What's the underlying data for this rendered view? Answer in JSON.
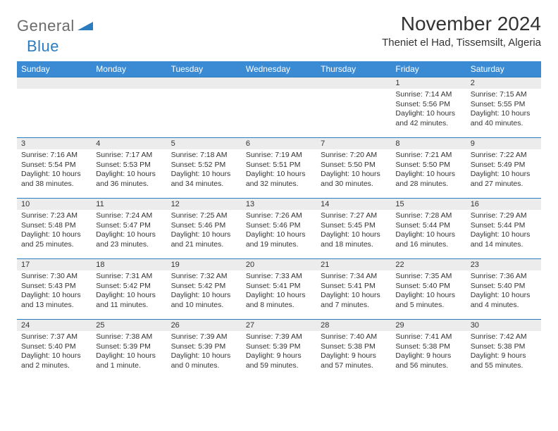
{
  "brand": {
    "part1": "General",
    "part2": "Blue"
  },
  "title": "November 2024",
  "location": "Theniet el Had, Tissemsilt, Algeria",
  "colors": {
    "header_bg": "#3b8bd4",
    "header_text": "#ffffff",
    "border": "#2b7bbf",
    "daynum_bg": "#ececec",
    "logo_gray": "#6b6b6b",
    "logo_blue": "#2b7bbf"
  },
  "day_headers": [
    "Sunday",
    "Monday",
    "Tuesday",
    "Wednesday",
    "Thursday",
    "Friday",
    "Saturday"
  ],
  "weeks": [
    [
      null,
      null,
      null,
      null,
      null,
      {
        "n": "1",
        "sr": "7:14 AM",
        "ss": "5:56 PM",
        "dl": "10 hours and 42 minutes."
      },
      {
        "n": "2",
        "sr": "7:15 AM",
        "ss": "5:55 PM",
        "dl": "10 hours and 40 minutes."
      }
    ],
    [
      {
        "n": "3",
        "sr": "7:16 AM",
        "ss": "5:54 PM",
        "dl": "10 hours and 38 minutes."
      },
      {
        "n": "4",
        "sr": "7:17 AM",
        "ss": "5:53 PM",
        "dl": "10 hours and 36 minutes."
      },
      {
        "n": "5",
        "sr": "7:18 AM",
        "ss": "5:52 PM",
        "dl": "10 hours and 34 minutes."
      },
      {
        "n": "6",
        "sr": "7:19 AM",
        "ss": "5:51 PM",
        "dl": "10 hours and 32 minutes."
      },
      {
        "n": "7",
        "sr": "7:20 AM",
        "ss": "5:50 PM",
        "dl": "10 hours and 30 minutes."
      },
      {
        "n": "8",
        "sr": "7:21 AM",
        "ss": "5:50 PM",
        "dl": "10 hours and 28 minutes."
      },
      {
        "n": "9",
        "sr": "7:22 AM",
        "ss": "5:49 PM",
        "dl": "10 hours and 27 minutes."
      }
    ],
    [
      {
        "n": "10",
        "sr": "7:23 AM",
        "ss": "5:48 PM",
        "dl": "10 hours and 25 minutes."
      },
      {
        "n": "11",
        "sr": "7:24 AM",
        "ss": "5:47 PM",
        "dl": "10 hours and 23 minutes."
      },
      {
        "n": "12",
        "sr": "7:25 AM",
        "ss": "5:46 PM",
        "dl": "10 hours and 21 minutes."
      },
      {
        "n": "13",
        "sr": "7:26 AM",
        "ss": "5:46 PM",
        "dl": "10 hours and 19 minutes."
      },
      {
        "n": "14",
        "sr": "7:27 AM",
        "ss": "5:45 PM",
        "dl": "10 hours and 18 minutes."
      },
      {
        "n": "15",
        "sr": "7:28 AM",
        "ss": "5:44 PM",
        "dl": "10 hours and 16 minutes."
      },
      {
        "n": "16",
        "sr": "7:29 AM",
        "ss": "5:44 PM",
        "dl": "10 hours and 14 minutes."
      }
    ],
    [
      {
        "n": "17",
        "sr": "7:30 AM",
        "ss": "5:43 PM",
        "dl": "10 hours and 13 minutes."
      },
      {
        "n": "18",
        "sr": "7:31 AM",
        "ss": "5:42 PM",
        "dl": "10 hours and 11 minutes."
      },
      {
        "n": "19",
        "sr": "7:32 AM",
        "ss": "5:42 PM",
        "dl": "10 hours and 10 minutes."
      },
      {
        "n": "20",
        "sr": "7:33 AM",
        "ss": "5:41 PM",
        "dl": "10 hours and 8 minutes."
      },
      {
        "n": "21",
        "sr": "7:34 AM",
        "ss": "5:41 PM",
        "dl": "10 hours and 7 minutes."
      },
      {
        "n": "22",
        "sr": "7:35 AM",
        "ss": "5:40 PM",
        "dl": "10 hours and 5 minutes."
      },
      {
        "n": "23",
        "sr": "7:36 AM",
        "ss": "5:40 PM",
        "dl": "10 hours and 4 minutes."
      }
    ],
    [
      {
        "n": "24",
        "sr": "7:37 AM",
        "ss": "5:40 PM",
        "dl": "10 hours and 2 minutes."
      },
      {
        "n": "25",
        "sr": "7:38 AM",
        "ss": "5:39 PM",
        "dl": "10 hours and 1 minute."
      },
      {
        "n": "26",
        "sr": "7:39 AM",
        "ss": "5:39 PM",
        "dl": "10 hours and 0 minutes."
      },
      {
        "n": "27",
        "sr": "7:39 AM",
        "ss": "5:39 PM",
        "dl": "9 hours and 59 minutes."
      },
      {
        "n": "28",
        "sr": "7:40 AM",
        "ss": "5:38 PM",
        "dl": "9 hours and 57 minutes."
      },
      {
        "n": "29",
        "sr": "7:41 AM",
        "ss": "5:38 PM",
        "dl": "9 hours and 56 minutes."
      },
      {
        "n": "30",
        "sr": "7:42 AM",
        "ss": "5:38 PM",
        "dl": "9 hours and 55 minutes."
      }
    ]
  ]
}
